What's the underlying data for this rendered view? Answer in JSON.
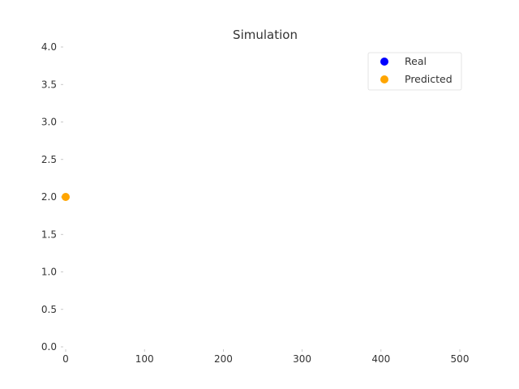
{
  "chart_data": {
    "type": "scatter",
    "title": "Simulation",
    "xlabel": "",
    "ylabel": "",
    "xlim": [
      0,
      500
    ],
    "ylim": [
      0,
      4
    ],
    "x_ticks": [
      0,
      100,
      200,
      300,
      400,
      500
    ],
    "y_ticks": [
      "0.0",
      "0.5",
      "1.0",
      "1.5",
      "2.0",
      "2.5",
      "3.0",
      "3.5",
      "4.0"
    ],
    "grid": false,
    "legend_position": "top-right",
    "series": [
      {
        "name": "Real",
        "color": "#0000ff",
        "points": []
      },
      {
        "name": "Predicted",
        "color": "#ffa500",
        "points": [
          {
            "x": 0,
            "y": 2.0
          }
        ]
      }
    ]
  }
}
